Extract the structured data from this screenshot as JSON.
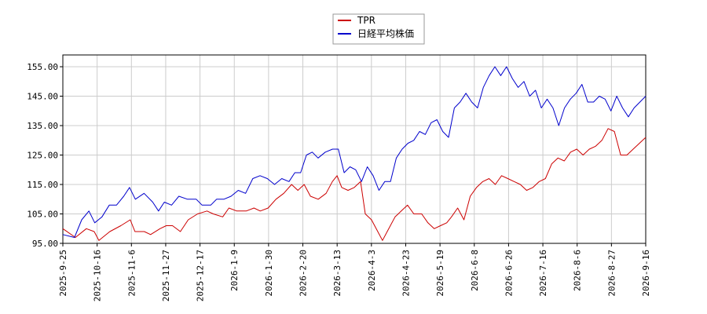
{
  "chart_data": {
    "type": "line",
    "title": "",
    "xlabel": "",
    "ylabel": "",
    "ylim": [
      95,
      159
    ],
    "yticks": [
      "95.00",
      "105.00",
      "115.00",
      "125.00",
      "135.00",
      "145.00",
      "155.00"
    ],
    "ytick_values": [
      95,
      105,
      115,
      125,
      135,
      145,
      155
    ],
    "xticks": [
      "2025-9-25",
      "2025-10-16",
      "2025-11-6",
      "2025-11-27",
      "2025-12-17",
      "2026-1-9",
      "2026-1-30",
      "2026-2-20",
      "2026-3-13",
      "2026-4-3",
      "2026-4-23",
      "2026-5-19",
      "2026-6-8",
      "2026-6-26",
      "2026-7-16",
      "2026-8-6",
      "2026-8-27",
      "2026-9-16"
    ],
    "grid": true,
    "legend_position": "top-center",
    "n_points": 250,
    "series": [
      {
        "name": "TPR",
        "color": "#cc0000",
        "points": [
          [
            0,
            100
          ],
          [
            8,
            97
          ],
          [
            15,
            100
          ],
          [
            20,
            99
          ],
          [
            23,
            96
          ],
          [
            30,
            99
          ],
          [
            37,
            101
          ],
          [
            43,
            103
          ],
          [
            46,
            99
          ],
          [
            52,
            99
          ],
          [
            56,
            98
          ],
          [
            62,
            100
          ],
          [
            66,
            101
          ],
          [
            70,
            101
          ],
          [
            75,
            99
          ],
          [
            80,
            103
          ],
          [
            86,
            105
          ],
          [
            92,
            106
          ],
          [
            96,
            105
          ],
          [
            102,
            104
          ],
          [
            106,
            107
          ],
          [
            111,
            106
          ],
          [
            117,
            106
          ],
          [
            122,
            107
          ],
          [
            126,
            106
          ],
          [
            131,
            107
          ],
          [
            136,
            110
          ],
          [
            141,
            112
          ],
          [
            146,
            115
          ],
          [
            150,
            113
          ],
          [
            154,
            115
          ],
          [
            158,
            111
          ],
          [
            163,
            110
          ],
          [
            168,
            112
          ],
          [
            172,
            116
          ],
          [
            175,
            118
          ],
          [
            178,
            114
          ],
          [
            182,
            113
          ],
          [
            186,
            114
          ],
          [
            190,
            116
          ],
          [
            193,
            105
          ],
          [
            197,
            103
          ],
          [
            201,
            99
          ],
          [
            204,
            96
          ],
          [
            207,
            99
          ],
          [
            212,
            104
          ],
          [
            216,
            106
          ],
          [
            220,
            108
          ],
          [
            224,
            105
          ],
          [
            229,
            105
          ],
          [
            233,
            102
          ],
          [
            237,
            100
          ],
          [
            241,
            101
          ],
          [
            245,
            102
          ],
          [
            248,
            104
          ],
          [
            252,
            107
          ],
          [
            256,
            103
          ],
          [
            260,
            111
          ],
          [
            264,
            114
          ],
          [
            268,
            116
          ],
          [
            272,
            117
          ],
          [
            276,
            115
          ],
          [
            280,
            118
          ],
          [
            284,
            117
          ],
          [
            288,
            116
          ],
          [
            292,
            115
          ],
          [
            296,
            113
          ],
          [
            300,
            114
          ],
          [
            304,
            116
          ],
          [
            308,
            117
          ],
          [
            312,
            122
          ],
          [
            316,
            124
          ],
          [
            320,
            123
          ],
          [
            324,
            126
          ],
          [
            328,
            127
          ],
          [
            332,
            125
          ],
          [
            336,
            127
          ],
          [
            340,
            128
          ],
          [
            344,
            130
          ],
          [
            348,
            134
          ],
          [
            352,
            133
          ],
          [
            356,
            125
          ],
          [
            360,
            125
          ],
          [
            364,
            127
          ],
          [
            368,
            129
          ],
          [
            372,
            131
          ]
        ]
      },
      {
        "name": "日経平均株価",
        "color": "#0000cc",
        "points": [
          [
            0,
            98
          ],
          [
            8,
            97
          ],
          [
            13,
            103
          ],
          [
            18,
            106
          ],
          [
            22,
            102
          ],
          [
            27,
            104
          ],
          [
            32,
            108
          ],
          [
            37,
            108
          ],
          [
            42,
            111
          ],
          [
            46,
            114
          ],
          [
            50,
            110
          ],
          [
            56,
            112
          ],
          [
            62,
            109
          ],
          [
            66,
            106
          ],
          [
            70,
            109
          ],
          [
            75,
            108
          ],
          [
            80,
            111
          ],
          [
            86,
            110
          ],
          [
            92,
            110
          ],
          [
            96,
            108
          ],
          [
            102,
            108
          ],
          [
            106,
            110
          ],
          [
            111,
            110
          ],
          [
            116,
            111
          ],
          [
            121,
            113
          ],
          [
            126,
            112
          ],
          [
            131,
            117
          ],
          [
            136,
            118
          ],
          [
            141,
            117
          ],
          [
            146,
            115
          ],
          [
            151,
            117
          ],
          [
            156,
            116
          ],
          [
            160,
            119
          ],
          [
            164,
            119
          ],
          [
            168,
            125
          ],
          [
            172,
            126
          ],
          [
            176,
            124
          ],
          [
            181,
            126
          ],
          [
            186,
            127
          ],
          [
            190,
            127
          ],
          [
            194,
            119
          ],
          [
            198,
            121
          ],
          [
            202,
            120
          ],
          [
            206,
            116
          ],
          [
            210,
            121
          ],
          [
            214,
            118
          ],
          [
            218,
            113
          ],
          [
            222,
            116
          ],
          [
            226,
            116
          ],
          [
            230,
            124
          ],
          [
            234,
            127
          ],
          [
            238,
            129
          ],
          [
            242,
            130
          ],
          [
            246,
            133
          ],
          [
            250,
            132
          ],
          [
            254,
            136
          ],
          [
            258,
            137
          ],
          [
            262,
            133
          ],
          [
            266,
            131
          ],
          [
            270,
            141
          ],
          [
            274,
            143
          ],
          [
            278,
            146
          ],
          [
            282,
            143
          ],
          [
            286,
            141
          ],
          [
            290,
            148
          ],
          [
            294,
            152
          ],
          [
            298,
            155
          ],
          [
            302,
            152
          ],
          [
            306,
            155
          ],
          [
            310,
            151
          ],
          [
            314,
            148
          ],
          [
            318,
            150
          ],
          [
            322,
            145
          ],
          [
            326,
            147
          ],
          [
            330,
            141
          ],
          [
            334,
            144
          ],
          [
            338,
            141
          ],
          [
            342,
            135
          ],
          [
            346,
            141
          ],
          [
            350,
            144
          ],
          [
            354,
            146
          ],
          [
            358,
            149
          ],
          [
            362,
            143
          ],
          [
            366,
            143
          ],
          [
            370,
            145
          ],
          [
            374,
            144
          ],
          [
            378,
            140
          ],
          [
            382,
            145
          ],
          [
            386,
            141
          ],
          [
            390,
            138
          ],
          [
            394,
            141
          ],
          [
            398,
            143
          ],
          [
            402,
            145
          ]
        ]
      }
    ]
  }
}
